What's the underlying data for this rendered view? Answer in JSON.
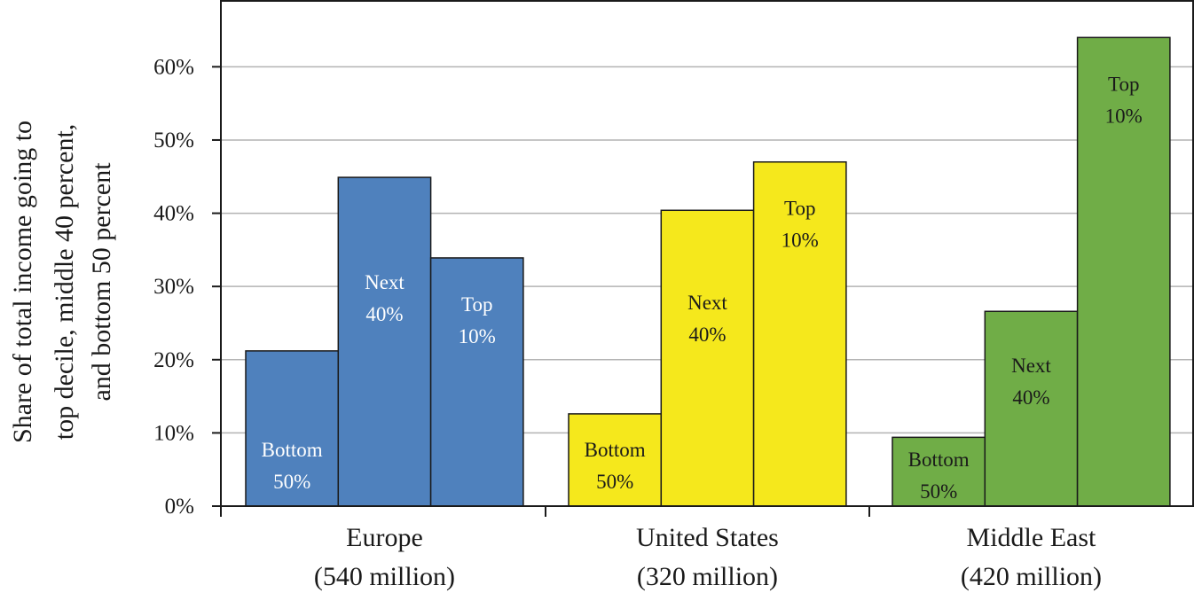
{
  "chart_data": {
    "type": "bar",
    "ylabel": [
      "Share of total income going to",
      "top decile, middle 40 percent,",
      "and bottom 50 percent"
    ],
    "ylim": [
      0,
      0.69
    ],
    "yticks": [
      {
        "value": 0,
        "label": "0%"
      },
      {
        "value": 0.1,
        "label": "10%"
      },
      {
        "value": 0.2,
        "label": "20%"
      },
      {
        "value": 0.3,
        "label": "30%"
      },
      {
        "value": 0.4,
        "label": "40%"
      },
      {
        "value": 0.5,
        "label": "50%"
      },
      {
        "value": 0.6,
        "label": "60%"
      }
    ],
    "grid": "horizontal",
    "legend": "none",
    "groups": [
      {
        "name": "Europe",
        "sub": "(540 million)",
        "color": "#4f81bd",
        "text_color": "#ffffff",
        "bars": [
          {
            "label1": "Bottom",
            "label2": "50%",
            "value": 0.212
          },
          {
            "label1": "Next",
            "label2": "40%",
            "value": 0.449
          },
          {
            "label1": "Top",
            "label2": "10%",
            "value": 0.339
          }
        ]
      },
      {
        "name": "United States",
        "sub": "(320 million)",
        "color": "#f5e81c",
        "text_color": "#1a1a1a",
        "bars": [
          {
            "label1": "Bottom",
            "label2": "50%",
            "value": 0.126
          },
          {
            "label1": "Next",
            "label2": "40%",
            "value": 0.404
          },
          {
            "label1": "Top",
            "label2": "10%",
            "value": 0.47
          }
        ]
      },
      {
        "name": "Middle East",
        "sub": "(420 million)",
        "color": "#70ad47",
        "text_color": "#1a1a1a",
        "bars": [
          {
            "label1": "Bottom",
            "label2": "50%",
            "value": 0.094
          },
          {
            "label1": "Next",
            "label2": "40%",
            "value": 0.266
          },
          {
            "label1": "Top",
            "label2": "10%",
            "value": 0.64
          }
        ]
      }
    ]
  }
}
